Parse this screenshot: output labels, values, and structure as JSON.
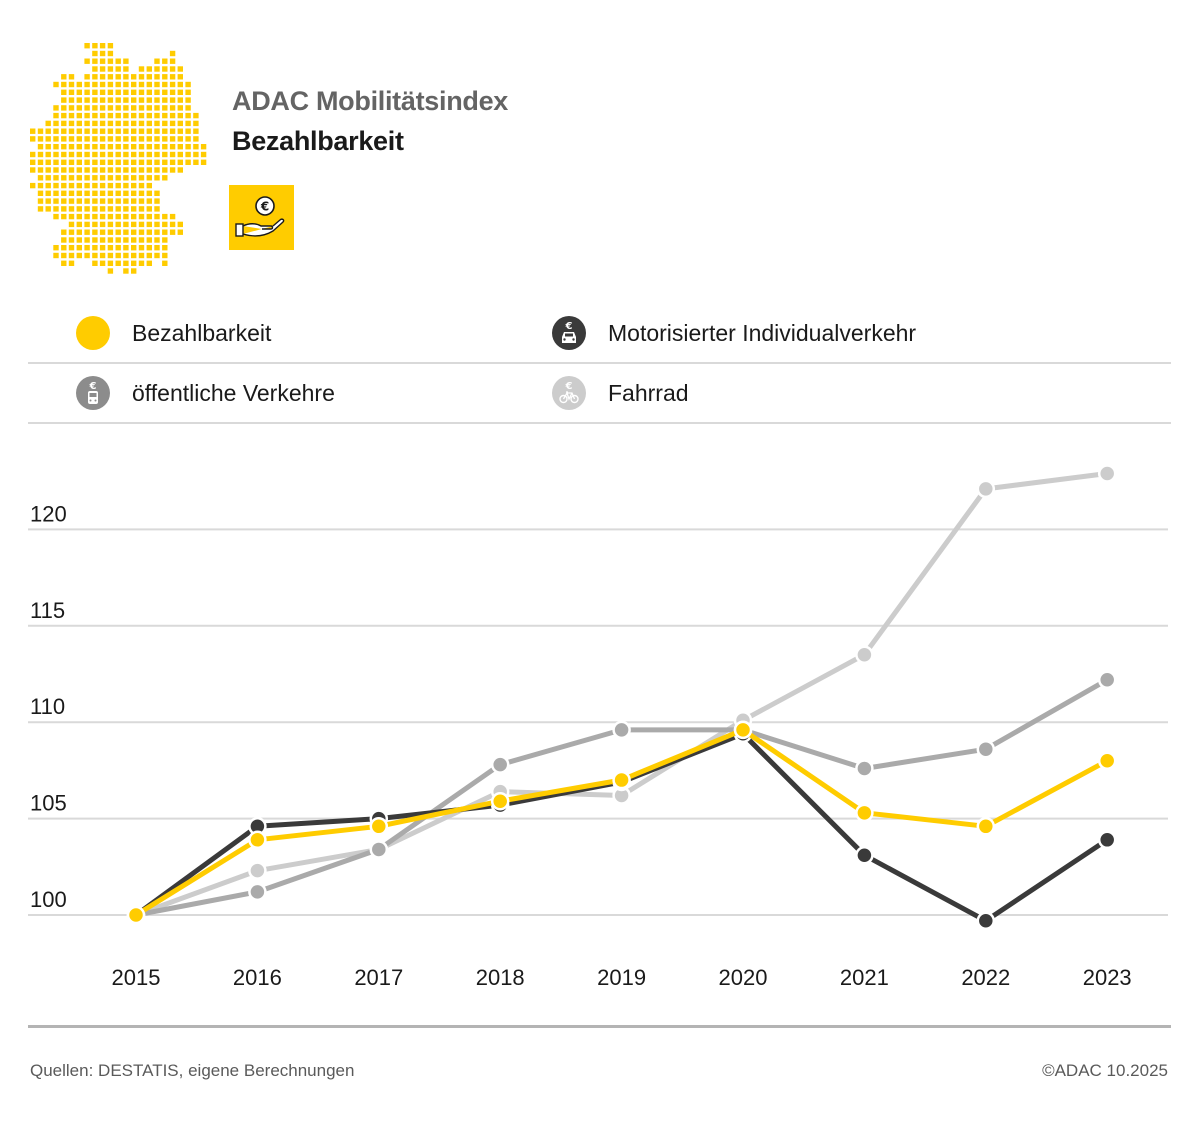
{
  "header": {
    "title": "ADAC Mobilitätsindex",
    "subtitle": "Bezahlbarkeit",
    "badge_icon": "hand-euro-icon",
    "map_icon": "germany-dot-map-icon"
  },
  "colors": {
    "accent": "#ffcc00",
    "miv": "#3a3a3a",
    "oev": "#a8a8a8",
    "fahrrad": "#cccccc",
    "grid": "#d9d9d9",
    "title_gray": "#646464"
  },
  "legend": [
    {
      "label": "Bezahlbarkeit",
      "icon": "yellow-dot-icon",
      "color": "#ffcc00"
    },
    {
      "label": "Motorisierter Individualverkehr",
      "icon": "euro-car-icon",
      "color": "#3a3a3a"
    },
    {
      "label": "öffentliche Verkehre",
      "icon": "euro-train-icon",
      "color": "#8c8c8c"
    },
    {
      "label": "Fahrrad",
      "icon": "euro-bicycle-icon",
      "color": "#cccccc"
    }
  ],
  "chart_data": {
    "type": "line",
    "title": "ADAC Mobilitätsindex – Bezahlbarkeit",
    "xlabel": "",
    "ylabel": "",
    "x": [
      "2015",
      "2016",
      "2017",
      "2018",
      "2019",
      "2020",
      "2021",
      "2022",
      "2023"
    ],
    "yticks": [
      100,
      105,
      110,
      115,
      120
    ],
    "ylim": [
      100,
      124
    ],
    "grid": true,
    "legend_position": "top",
    "series": [
      {
        "name": "Fahrrad",
        "color": "#cccccc",
        "values": [
          100,
          102.3,
          103.4,
          106.4,
          106.2,
          110.1,
          113.5,
          122.1,
          122.9
        ]
      },
      {
        "name": "öffentliche Verkehre",
        "color": "#aaaaaa",
        "values": [
          100,
          101.2,
          103.4,
          107.8,
          109.6,
          109.6,
          107.6,
          108.6,
          112.2
        ]
      },
      {
        "name": "Motorisierter Individualverkehr",
        "color": "#3a3a3a",
        "values": [
          100,
          104.6,
          105.0,
          105.7,
          106.9,
          109.4,
          103.1,
          99.7,
          103.9
        ]
      },
      {
        "name": "Bezahlbarkeit",
        "color": "#ffcc00",
        "values": [
          100,
          103.9,
          104.6,
          105.9,
          107.0,
          109.6,
          105.3,
          104.6,
          108.0
        ]
      }
    ]
  },
  "footer": {
    "source": "Quellen: DESTATIS, eigene Berechnungen",
    "copyright": "©ADAC 10.2025"
  }
}
